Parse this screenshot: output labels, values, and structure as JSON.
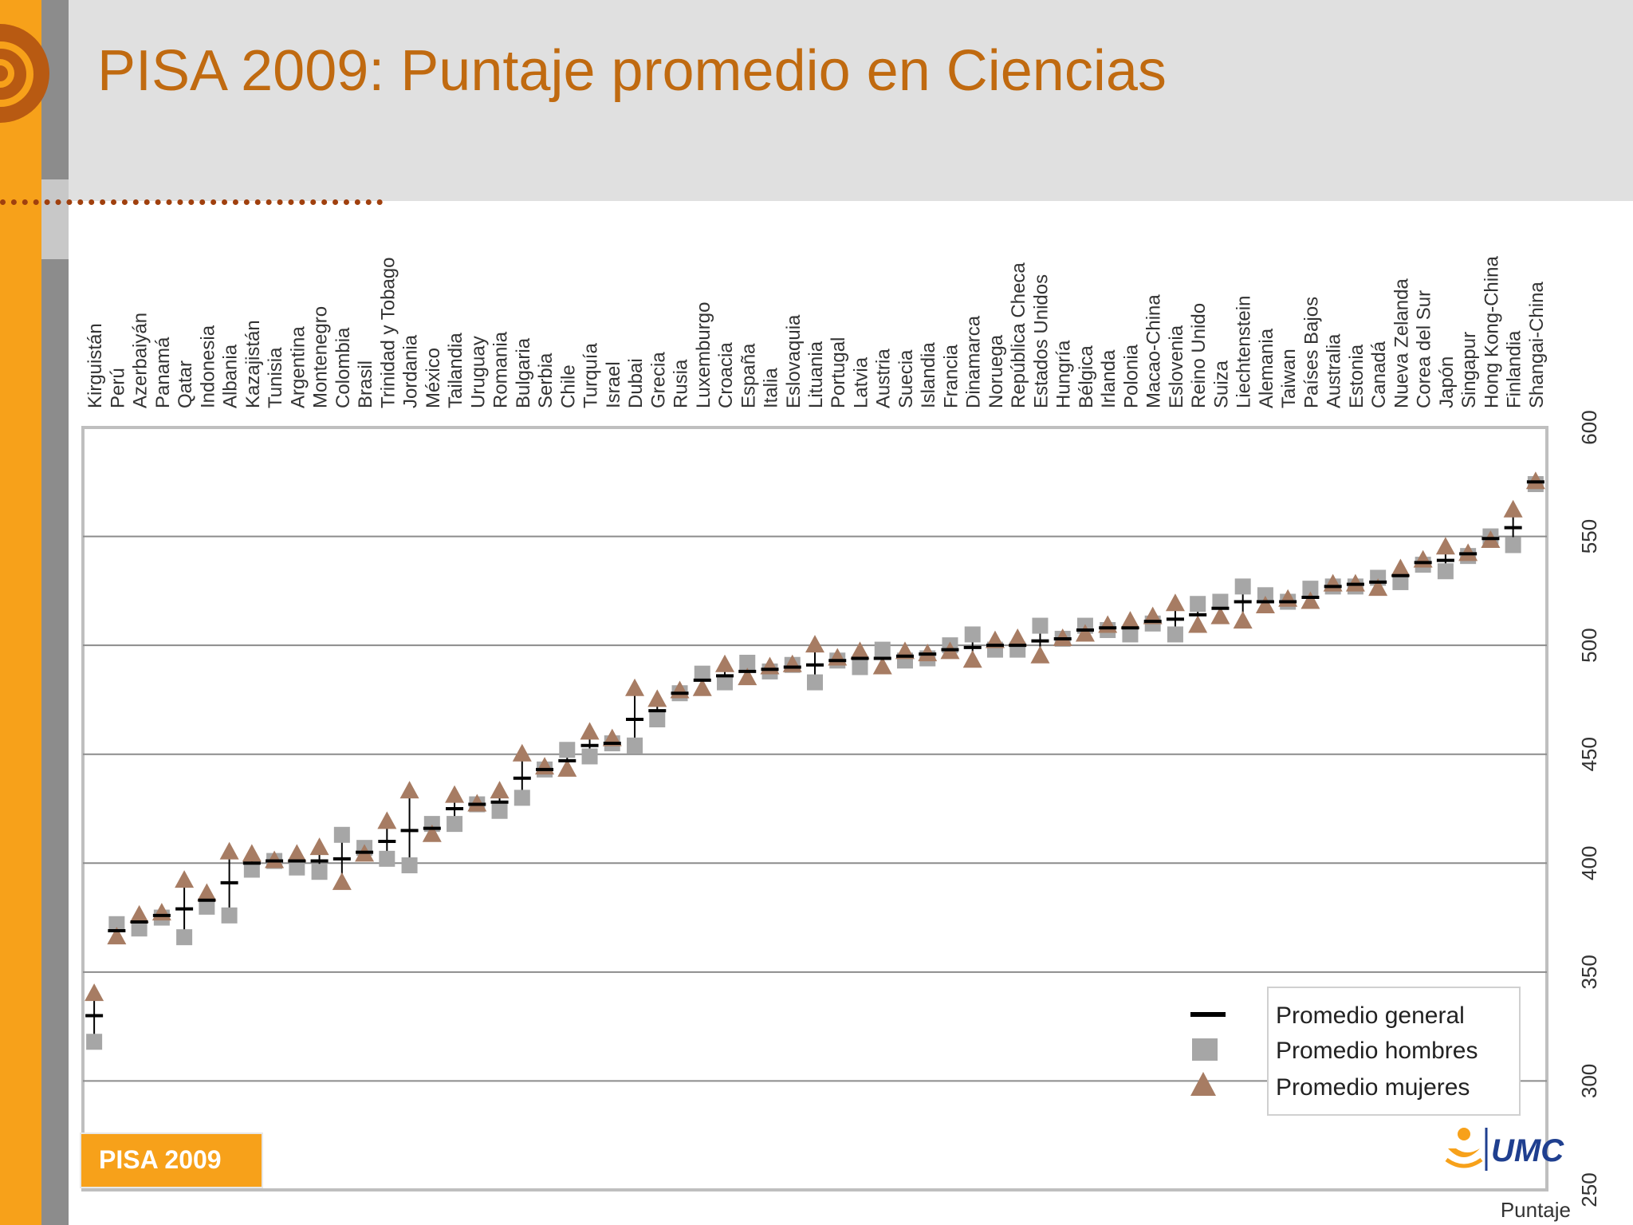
{
  "slide": {
    "title": "PISA 2009: Puntaje promedio en Ciencias",
    "badge": "PISA 2009",
    "logo_text": "UMC",
    "accent_color": "#f7a11a",
    "title_color": "#c06a10"
  },
  "chart_data": {
    "type": "scatter",
    "title": "",
    "xlabel": "",
    "ylabel": "Puntaje",
    "ylim": [
      250,
      600
    ],
    "yticks": [
      250,
      300,
      350,
      400,
      450,
      500,
      550,
      600
    ],
    "grid": true,
    "legend_position": "bottom-right",
    "categories": [
      "Kirguistán",
      "Perú",
      "Azerbaiyán",
      "Panamá",
      "Qatar",
      "Indonesia",
      "Albania",
      "Kazajistán",
      "Tunisia",
      "Argentina",
      "Montenegro",
      "Colombia",
      "Brasil",
      "Trinidad y Tobago",
      "Jordania",
      "México",
      "Tailandia",
      "Uruguay",
      "Romania",
      "Bulgaria",
      "Serbia",
      "Chile",
      "Turquía",
      "Israel",
      "Dubai",
      "Grecia",
      "Rusia",
      "Luxemburgo",
      "Croacia",
      "España",
      "Italia",
      "Eslovaquia",
      "Lituania",
      "Portugal",
      "Latvia",
      "Austria",
      "Suecia",
      "Islandia",
      "Francia",
      "Dinamarca",
      "Noruega",
      "República Checa",
      "Estados Unidos",
      "Hungría",
      "Bélgica",
      "Irlanda",
      "Polonia",
      "Macao-China",
      "Eslovenia",
      "Reino Unido",
      "Suiza",
      "Liechtenstein",
      "Alemania",
      "Taiwan",
      "Países Bajos",
      "Australia",
      "Estonia",
      "Canadá",
      "Nueva Zelanda",
      "Corea del Sur",
      "Japón",
      "Singapur",
      "Hong Kong-China",
      "Finlandia",
      "Shangai-China"
    ],
    "series": [
      {
        "name": "Promedio general",
        "marker": "dash",
        "color": "#000000",
        "values": [
          330,
          369,
          373,
          376,
          379,
          383,
          391,
          400,
          401,
          401,
          401,
          402,
          405,
          410,
          415,
          416,
          425,
          427,
          428,
          439,
          443,
          447,
          454,
          455,
          466,
          470,
          478,
          484,
          486,
          488,
          489,
          490,
          491,
          493,
          494,
          494,
          495,
          496,
          498,
          499,
          500,
          500,
          502,
          503,
          507,
          508,
          508,
          511,
          512,
          514,
          517,
          520,
          520,
          520,
          522,
          527,
          528,
          529,
          532,
          538,
          539,
          542,
          549,
          554,
          575
        ]
      },
      {
        "name": "Promedio hombres",
        "marker": "square",
        "color": "#a6a6a6",
        "values": [
          318,
          372,
          370,
          375,
          366,
          380,
          376,
          397,
          401,
          398,
          396,
          413,
          407,
          402,
          399,
          418,
          418,
          427,
          424,
          430,
          443,
          452,
          449,
          455,
          454,
          466,
          478,
          487,
          483,
          492,
          488,
          491,
          483,
          493,
          490,
          498,
          493,
          494,
          500,
          505,
          498,
          498,
          509,
          503,
          509,
          507,
          505,
          510,
          505,
          519,
          520,
          527,
          523,
          520,
          526,
          527,
          527,
          531,
          529,
          537,
          534,
          541,
          550,
          546,
          574
        ]
      },
      {
        "name": "Promedio mujeres",
        "marker": "triangle",
        "color": "#a77c63",
        "values": [
          340,
          366,
          376,
          377,
          392,
          386,
          405,
          404,
          401,
          404,
          407,
          391,
          404,
          419,
          433,
          413,
          431,
          427,
          433,
          450,
          444,
          443,
          460,
          457,
          480,
          475,
          479,
          480,
          491,
          485,
          490,
          491,
          500,
          494,
          497,
          490,
          497,
          496,
          497,
          493,
          502,
          503,
          495,
          503,
          505,
          509,
          511,
          513,
          519,
          509,
          513,
          511,
          518,
          521,
          520,
          528,
          528,
          526,
          535,
          539,
          545,
          542,
          548,
          562,
          575
        ]
      }
    ]
  }
}
